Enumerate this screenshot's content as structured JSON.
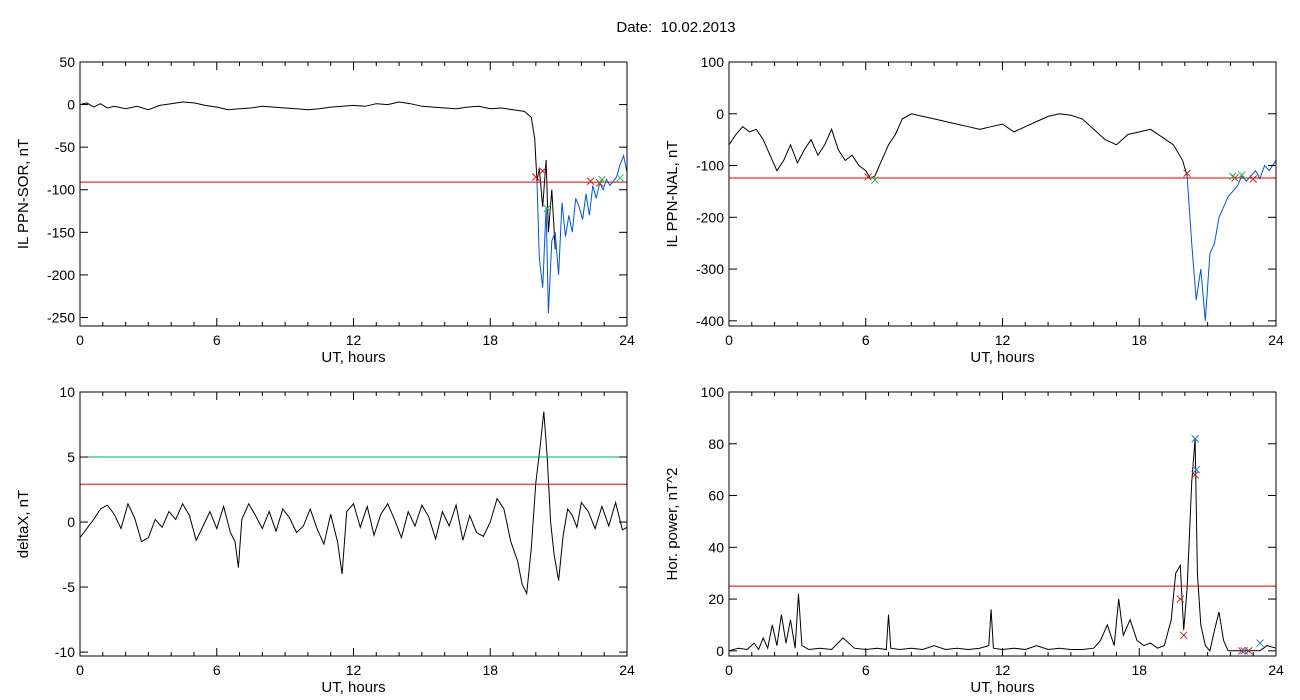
{
  "header": {
    "date_label": "Date:",
    "date_value": "10.02.2013"
  },
  "chart_data": [
    {
      "type": "line",
      "title": "",
      "xlabel": "UT, hours",
      "ylabel": "IL PPN-SOR, nT",
      "xlim": [
        0,
        24
      ],
      "ylim": [
        -260,
        50
      ],
      "xticks": [
        0,
        6,
        12,
        18,
        24
      ],
      "yticks": [
        50,
        0,
        -50,
        -100,
        -150,
        -200,
        -250
      ],
      "series": [
        {
          "color": "#000000",
          "x": [
            0,
            0.3,
            0.6,
            0.9,
            1.2,
            1.5,
            2,
            2.5,
            3,
            3.5,
            4,
            4.5,
            5,
            5.5,
            6,
            6.5,
            7,
            7.5,
            8,
            8.5,
            9,
            9.5,
            10,
            10.5,
            11,
            11.5,
            12,
            12.5,
            13,
            13.5,
            14,
            14.5,
            15,
            15.5,
            16,
            16.5,
            17,
            17.5,
            18,
            18.5,
            19,
            19.5,
            19.8,
            19.95,
            20.05,
            20.15,
            20.3,
            20.45,
            20.55,
            20.7,
            20.85
          ],
          "y": [
            0,
            2,
            -3,
            1,
            -4,
            -2,
            -5,
            -2,
            -6,
            -1,
            1,
            3,
            2,
            -1,
            -3,
            -6,
            -5,
            -4,
            -2,
            -3,
            -4,
            -5,
            -6,
            -5,
            -3,
            -2,
            -1,
            -2,
            1,
            0,
            3,
            1,
            -2,
            -3,
            -4,
            -5,
            -3,
            -2,
            -5,
            -4,
            -6,
            -8,
            -15,
            -40,
            -90,
            -75,
            -120,
            -65,
            -150,
            -100,
            -170
          ]
        },
        {
          "color": "#0055dd",
          "x": [
            20.05,
            20.15,
            20.3,
            20.45,
            20.55,
            20.7,
            20.85,
            21,
            21.15,
            21.3,
            21.45,
            21.6,
            21.75,
            21.9,
            22.05,
            22.2,
            22.35,
            22.5,
            22.65,
            22.8,
            22.95,
            23.1,
            23.25,
            23.4,
            23.55,
            23.7,
            23.85,
            24
          ],
          "y": [
            -90,
            -180,
            -215,
            -120,
            -245,
            -160,
            -150,
            -200,
            -115,
            -155,
            -130,
            -150,
            -110,
            -120,
            -135,
            -105,
            -130,
            -95,
            -110,
            -92,
            -100,
            -88,
            -95,
            -90,
            -85,
            -70,
            -60,
            -80
          ]
        },
        {
          "color": "#dd0000",
          "x": [
            0,
            24
          ],
          "y": [
            -91,
            -91
          ]
        }
      ],
      "markers": [
        {
          "color": "#cc2222",
          "x": [
            20.0,
            20.3,
            22.4,
            22.8
          ],
          "y": [
            -85,
            -78,
            -90,
            -92
          ]
        },
        {
          "color": "#22bb55",
          "x": [
            20.5,
            22.9,
            23.7
          ],
          "y": [
            -122,
            -88,
            -86
          ]
        }
      ]
    },
    {
      "type": "line",
      "title": "",
      "xlabel": "UT, hours",
      "ylabel": "IL PPN-NAL, nT",
      "xlim": [
        0,
        24
      ],
      "ylim": [
        -410,
        100
      ],
      "xticks": [
        0,
        6,
        12,
        18,
        24
      ],
      "yticks": [
        100,
        0,
        -100,
        -200,
        -300,
        -400
      ],
      "series": [
        {
          "color": "#000000",
          "x": [
            0,
            0.3,
            0.6,
            0.9,
            1.2,
            1.5,
            1.8,
            2.1,
            2.4,
            2.7,
            3,
            3.3,
            3.6,
            3.9,
            4.2,
            4.5,
            4.8,
            5.1,
            5.4,
            5.7,
            6,
            6.2,
            6.4,
            6.6,
            6.8,
            7,
            7.3,
            7.6,
            8,
            8.5,
            9,
            9.5,
            10,
            10.5,
            11,
            11.5,
            12,
            12.5,
            13,
            13.5,
            14,
            14.5,
            15,
            15.5,
            16,
            16.5,
            17,
            17.5,
            18,
            18.5,
            19,
            19.5,
            19.9,
            20.1
          ],
          "y": [
            -60,
            -40,
            -25,
            -35,
            -30,
            -50,
            -80,
            -110,
            -90,
            -60,
            -95,
            -70,
            -50,
            -80,
            -60,
            -30,
            -70,
            -90,
            -80,
            -100,
            -110,
            -125,
            -120,
            -100,
            -80,
            -60,
            -40,
            -10,
            0,
            -5,
            -10,
            -15,
            -20,
            -25,
            -30,
            -25,
            -20,
            -35,
            -25,
            -15,
            -5,
            0,
            -3,
            -10,
            -30,
            -50,
            -60,
            -40,
            -35,
            -30,
            -45,
            -60,
            -90,
            -120
          ]
        },
        {
          "color": "#0055dd",
          "x": [
            20.1,
            20.3,
            20.5,
            20.7,
            20.9,
            21.1,
            21.3,
            21.5,
            21.7,
            21.9,
            22.1,
            22.3,
            22.5,
            22.7,
            22.9,
            23.1,
            23.3,
            23.5,
            23.7,
            24
          ],
          "y": [
            -120,
            -250,
            -360,
            -300,
            -400,
            -270,
            -250,
            -200,
            -180,
            -160,
            -150,
            -140,
            -120,
            -130,
            -120,
            -110,
            -125,
            -100,
            -110,
            -90
          ]
        },
        {
          "color": "#dd0000",
          "x": [
            0,
            24
          ],
          "y": [
            -124,
            -124
          ]
        }
      ],
      "markers": [
        {
          "color": "#cc2222",
          "x": [
            6.1,
            20.1,
            22.2,
            23.0
          ],
          "y": [
            -122,
            -115,
            -124,
            -126
          ]
        },
        {
          "color": "#22bb55",
          "x": [
            6.4,
            22.1,
            22.5
          ],
          "y": [
            -128,
            -121,
            -118
          ]
        }
      ]
    },
    {
      "type": "line",
      "title": "",
      "xlabel": "UT, hours",
      "ylabel": "deltaX, nT",
      "xlim": [
        0,
        24
      ],
      "ylim": [
        -10.3,
        10
      ],
      "xticks": [
        0,
        6,
        12,
        18,
        24
      ],
      "yticks": [
        10,
        5,
        0,
        -5,
        -10
      ],
      "series": [
        {
          "color": "#000000",
          "x": [
            0,
            0.3,
            0.6,
            0.9,
            1.2,
            1.5,
            1.8,
            2.1,
            2.4,
            2.7,
            3,
            3.3,
            3.6,
            3.9,
            4.2,
            4.5,
            4.8,
            5.1,
            5.4,
            5.7,
            6,
            6.3,
            6.6,
            6.8,
            6.95,
            7.1,
            7.4,
            7.7,
            8,
            8.3,
            8.6,
            8.9,
            9.2,
            9.5,
            9.8,
            10.1,
            10.4,
            10.7,
            11,
            11.3,
            11.5,
            11.7,
            12,
            12.3,
            12.6,
            12.9,
            13.2,
            13.5,
            13.8,
            14.1,
            14.4,
            14.7,
            15,
            15.3,
            15.6,
            15.9,
            16.2,
            16.5,
            16.8,
            17.1,
            17.4,
            17.7,
            18,
            18.3,
            18.6,
            18.9,
            19.2,
            19.4,
            19.6,
            19.8,
            20,
            20.2,
            20.35,
            20.5,
            20.65,
            20.8,
            21,
            21.2,
            21.4,
            21.6,
            21.8,
            22,
            22.3,
            22.6,
            22.9,
            23.2,
            23.5,
            23.8,
            24
          ],
          "y": [
            -1.2,
            -0.5,
            0.2,
            1,
            1.3,
            0.6,
            -0.5,
            1.4,
            0.3,
            -1.5,
            -1.2,
            0.2,
            -0.4,
            0.8,
            0.2,
            1.4,
            0.5,
            -1.4,
            -0.3,
            0.8,
            -0.5,
            1.2,
            -0.8,
            -1.5,
            -3.5,
            0.2,
            1.4,
            0.5,
            -0.5,
            0.8,
            -0.7,
            1,
            0.3,
            -0.8,
            -0.3,
            1,
            -0.5,
            -1.7,
            0.6,
            -1.5,
            -4,
            0.8,
            1.4,
            -0.4,
            1.2,
            -1,
            0.6,
            1.4,
            0.2,
            -1.2,
            0.8,
            -0.3,
            1.3,
            0.4,
            -1.3,
            0.8,
            -0.3,
            1.3,
            -1.4,
            0.5,
            -0.8,
            -1.1,
            0,
            1.8,
            1,
            -1.5,
            -3,
            -4.8,
            -5.5,
            -2,
            3,
            6,
            8.5,
            5,
            0,
            -2.5,
            -4.5,
            -1,
            1,
            0.5,
            -0.4,
            1.5,
            0.8,
            -0.5,
            1.2,
            -0.3,
            1.5,
            -0.6,
            -0.4
          ]
        },
        {
          "color": "#00aa88",
          "x": [
            0,
            24
          ],
          "y": [
            5,
            5
          ]
        },
        {
          "color": "#dd0000",
          "x": [
            0,
            24
          ],
          "y": [
            2.9,
            2.9
          ]
        }
      ],
      "markers": []
    },
    {
      "type": "line",
      "title": "",
      "xlabel": "UT, hours",
      "ylabel": "Hor. power, nT^2",
      "xlim": [
        0,
        24
      ],
      "ylim": [
        -2,
        100
      ],
      "xticks": [
        0,
        6,
        12,
        18,
        24
      ],
      "yticks": [
        100,
        80,
        60,
        40,
        20,
        0
      ],
      "series": [
        {
          "color": "#000000",
          "x": [
            0,
            0.4,
            0.8,
            1.1,
            1.3,
            1.5,
            1.7,
            1.9,
            2.1,
            2.3,
            2.5,
            2.7,
            2.9,
            3.05,
            3.2,
            3.5,
            4,
            4.5,
            5,
            5.5,
            6,
            6.5,
            6.9,
            7,
            7.1,
            7.5,
            8,
            8.5,
            9,
            9.5,
            10,
            10.5,
            11,
            11.4,
            11.5,
            11.6,
            12,
            12.5,
            13,
            13.5,
            14,
            14.5,
            15,
            15.5,
            16,
            16.3,
            16.6,
            16.9,
            17.1,
            17.3,
            17.6,
            17.9,
            18.2,
            18.5,
            18.8,
            19.1,
            19.4,
            19.6,
            19.8,
            19.95,
            20.1,
            20.3,
            20.45,
            20.55,
            20.7,
            20.9,
            21.1,
            21.3,
            21.5,
            21.7,
            21.9,
            22.1,
            22.4,
            22.7,
            23,
            23.3,
            23.6,
            24
          ],
          "y": [
            0,
            1,
            0.5,
            3,
            0.5,
            5,
            1,
            10,
            2,
            14,
            3,
            12,
            1,
            22,
            2,
            0.5,
            1,
            0.5,
            5,
            1,
            0.5,
            1,
            0.5,
            14,
            1,
            0.5,
            1,
            0.5,
            2,
            0.5,
            1,
            0.5,
            1,
            2,
            16,
            1,
            0.5,
            1,
            0.5,
            2,
            0.5,
            1,
            0.5,
            0.5,
            1,
            4,
            10,
            2,
            20,
            6,
            12,
            4,
            2,
            3,
            1,
            2,
            12,
            30,
            33,
            8,
            24,
            65,
            82,
            30,
            10,
            2,
            0,
            8,
            15,
            4,
            0,
            0,
            0,
            0,
            0,
            0,
            2,
            1
          ]
        },
        {
          "color": "#dd0000",
          "x": [
            0,
            24
          ],
          "y": [
            25,
            25
          ]
        }
      ],
      "markers": [
        {
          "color": "#cc2222",
          "x": [
            19.8,
            19.95,
            20.45,
            22.5,
            22.8
          ],
          "y": [
            20,
            6,
            68,
            0,
            0
          ]
        },
        {
          "color": "#2277cc",
          "x": [
            20.45,
            20.5,
            22.6,
            23.3
          ],
          "y": [
            82,
            70,
            0,
            3
          ]
        }
      ]
    }
  ]
}
